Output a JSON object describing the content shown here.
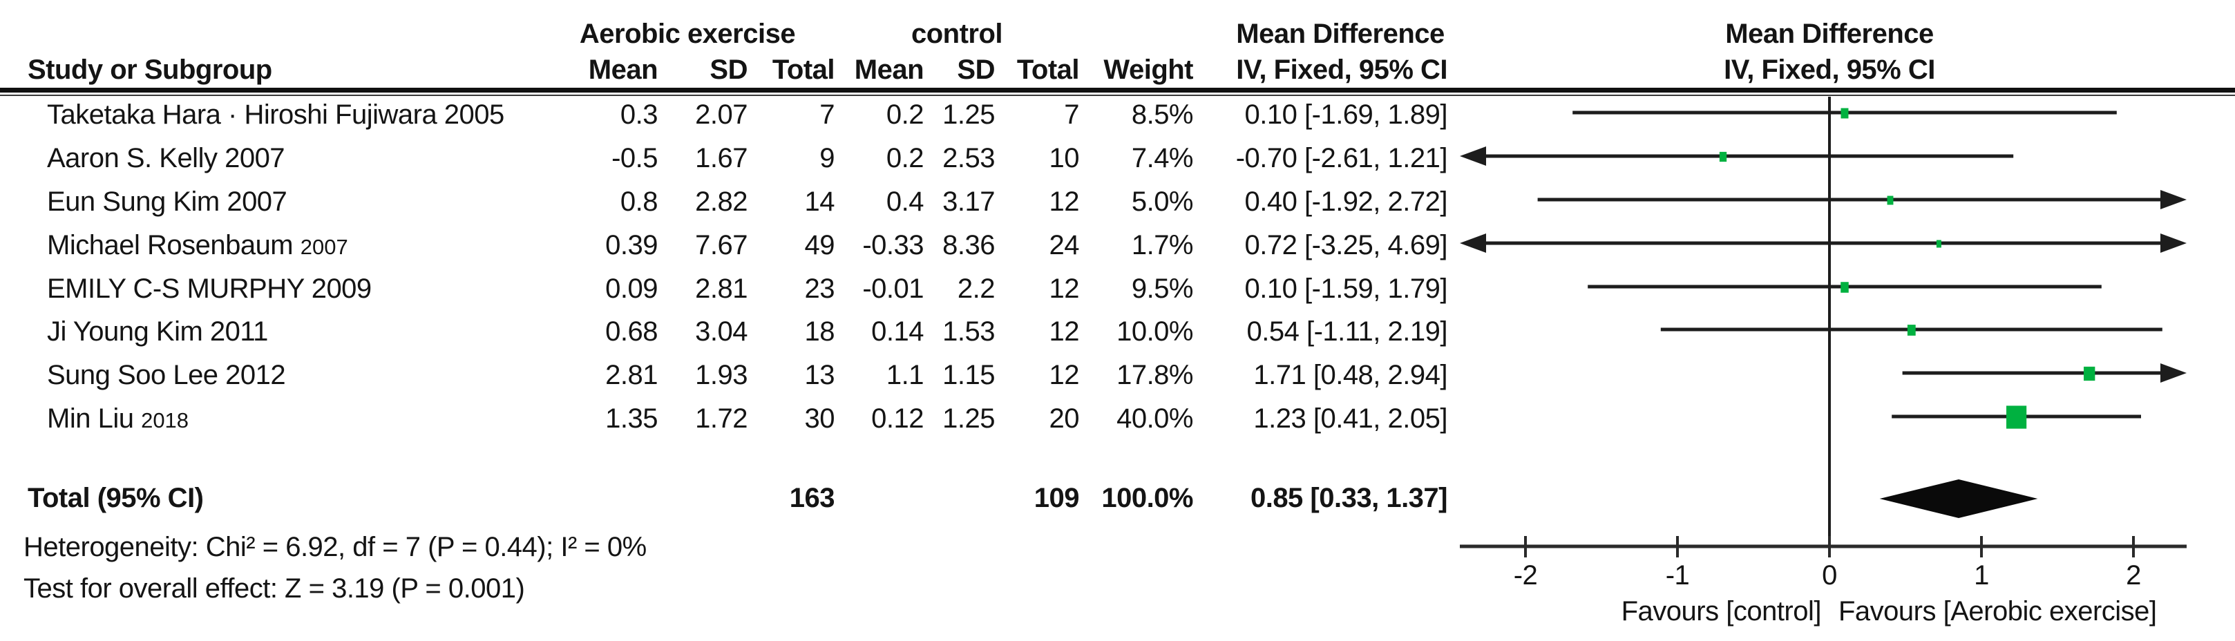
{
  "title_row": {
    "group1": "Aerobic exercise",
    "group2": "control",
    "md_col": "Mean Difference",
    "md_plot": "Mean Difference"
  },
  "header_row": {
    "study": "Study or Subgroup",
    "mean1": "Mean",
    "sd1": "SD",
    "total1": "Total",
    "mean2": "Mean",
    "sd2": "SD",
    "total2": "Total",
    "weight": "Weight",
    "ci_col": "IV, Fixed, 95% CI",
    "ci_plot": "IV, Fixed, 95% CI"
  },
  "rows": [
    {
      "study": "Taketaka Hara · Hiroshi Fujiwara 2005",
      "year_suffix": "",
      "mean1": "0.3",
      "sd1": "2.07",
      "total1": "7",
      "mean2": "0.2",
      "sd2": "1.25",
      "total2": "7",
      "weight": "8.5%",
      "ci_text": "0.10 [-1.69, 1.89]"
    },
    {
      "study": "Aaron S. Kelly 2007",
      "year_suffix": "",
      "mean1": "-0.5",
      "sd1": "1.67",
      "total1": "9",
      "mean2": "0.2",
      "sd2": "2.53",
      "total2": "10",
      "weight": "7.4%",
      "ci_text": "-0.70 [-2.61, 1.21]"
    },
    {
      "study": "Eun Sung Kim 2007",
      "year_suffix": "",
      "mean1": "0.8",
      "sd1": "2.82",
      "total1": "14",
      "mean2": "0.4",
      "sd2": "3.17",
      "total2": "12",
      "weight": "5.0%",
      "ci_text": "0.40 [-1.92, 2.72]"
    },
    {
      "study": "Michael Rosenbaum",
      "year_suffix": "2007",
      "mean1": "0.39",
      "sd1": "7.67",
      "total1": "49",
      "mean2": "-0.33",
      "sd2": "8.36",
      "total2": "24",
      "weight": "1.7%",
      "ci_text": "0.72 [-3.25, 4.69]"
    },
    {
      "study": "EMILY C-S MURPHY 2009",
      "year_suffix": "",
      "mean1": "0.09",
      "sd1": "2.81",
      "total1": "23",
      "mean2": "-0.01",
      "sd2": "2.2",
      "total2": "12",
      "weight": "9.5%",
      "ci_text": "0.10 [-1.59, 1.79]"
    },
    {
      "study": "Ji Young Kim 2011",
      "year_suffix": "",
      "mean1": "0.68",
      "sd1": "3.04",
      "total1": "18",
      "mean2": "0.14",
      "sd2": "1.53",
      "total2": "12",
      "weight": "10.0%",
      "ci_text": "0.54 [-1.11, 2.19]"
    },
    {
      "study": "Sung Soo Lee 2012",
      "year_suffix": "",
      "mean1": "2.81",
      "sd1": "1.93",
      "total1": "13",
      "mean2": "1.1",
      "sd2": "1.15",
      "total2": "12",
      "weight": "17.8%",
      "ci_text": "1.71 [0.48, 2.94]"
    },
    {
      "study": "Min Liu",
      "year_suffix": "2018",
      "mean1": "1.35",
      "sd1": "1.72",
      "total1": "30",
      "mean2": "0.12",
      "sd2": "1.25",
      "total2": "20",
      "weight": "40.0%",
      "ci_text": "1.23 [0.41, 2.05]"
    }
  ],
  "total_row": {
    "label": "Total (95% CI)",
    "total1": "163",
    "total2": "109",
    "weight": "100.0%",
    "ci_text": "0.85 [0.33, 1.37]"
  },
  "footnotes": {
    "heterogeneity": "Heterogeneity: Chi² = 6.92, df = 7 (P = 0.44); I² = 0%",
    "overall_effect": "Test for overall effect: Z = 3.19 (P = 0.001)"
  },
  "chart_data": {
    "type": "forest",
    "effect_measure": "Mean Difference (IV, Fixed, 95% CI)",
    "x_ticks": [
      -2,
      -1,
      0,
      1,
      2
    ],
    "x_visible_range": [
      -2.42,
      2.35
    ],
    "favours_left": "Favours [control]",
    "favours_right": "Favours [Aerobic exercise]",
    "marker_color": "#00b140",
    "line_color": "#1d1d1d",
    "studies": [
      {
        "name": "Taketaka Hara · Hiroshi Fujiwara 2005",
        "md": 0.1,
        "lo": -1.69,
        "hi": 1.89,
        "weight_pct": 8.5
      },
      {
        "name": "Aaron S. Kelly 2007",
        "md": -0.7,
        "lo": -2.61,
        "hi": 1.21,
        "weight_pct": 7.4
      },
      {
        "name": "Eun Sung Kim 2007",
        "md": 0.4,
        "lo": -1.92,
        "hi": 2.72,
        "weight_pct": 5.0
      },
      {
        "name": "Michael Rosenbaum 2007",
        "md": 0.72,
        "lo": -3.25,
        "hi": 4.69,
        "weight_pct": 1.7
      },
      {
        "name": "EMILY C-S MURPHY 2009",
        "md": 0.1,
        "lo": -1.59,
        "hi": 1.79,
        "weight_pct": 9.5
      },
      {
        "name": "Ji Young Kim 2011",
        "md": 0.54,
        "lo": -1.11,
        "hi": 2.19,
        "weight_pct": 10.0
      },
      {
        "name": "Sung Soo Lee 2012",
        "md": 1.71,
        "lo": 0.48,
        "hi": 2.94,
        "weight_pct": 17.8
      },
      {
        "name": "Min Liu 2018",
        "md": 1.23,
        "lo": 0.41,
        "hi": 2.05,
        "weight_pct": 40.0
      }
    ],
    "total": {
      "md": 0.85,
      "lo": 0.33,
      "hi": 1.37
    }
  }
}
